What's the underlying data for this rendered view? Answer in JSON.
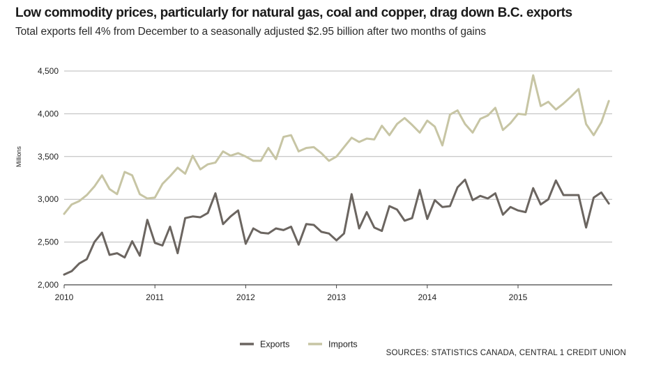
{
  "colors": {
    "exports": "#6b6560",
    "imports": "#c7c5a4",
    "grid": "#b8b8b8",
    "axis": "#444444"
  },
  "chart_data": {
    "type": "line",
    "title": "Low commodity prices, particularly for natural gas, coal and copper, drag down B.C. exports",
    "subtitle": "Total exports fell 4% from December to a seasonally adjusted $2.95 billion after two months of gains",
    "xlabel": "",
    "ylabel": "Millions",
    "ylim": [
      2000,
      4500
    ],
    "y_ticks": [
      2000,
      2500,
      3000,
      3500,
      4000,
      4500
    ],
    "y_tick_labels": [
      "2,000",
      "2,500",
      "3,000",
      "3,500",
      "4,000",
      "4,500"
    ],
    "x_ticks": [
      2010,
      2011,
      2012,
      2013,
      2014,
      2015
    ],
    "x_start": 2010,
    "points_per_year": 12,
    "grid": true,
    "legend": "bottom-center",
    "source": "SOURCES: STATISTICS CANADA, CENTRAL 1 CREDIT UNION",
    "series": [
      {
        "name": "Exports",
        "values": [
          2120,
          2160,
          2250,
          2300,
          2500,
          2610,
          2350,
          2370,
          2320,
          2510,
          2340,
          2760,
          2490,
          2460,
          2680,
          2370,
          2780,
          2800,
          2790,
          2840,
          3070,
          2710,
          2800,
          2870,
          2480,
          2660,
          2610,
          2600,
          2660,
          2640,
          2680,
          2470,
          2710,
          2700,
          2620,
          2600,
          2520,
          2600,
          3060,
          2660,
          2850,
          2670,
          2630,
          2920,
          2880,
          2750,
          2780,
          3110,
          2770,
          2990,
          2910,
          2920,
          3140,
          3230,
          2990,
          3040,
          3010,
          3070,
          2820,
          2910,
          2870,
          2850,
          3130,
          2940,
          3000,
          3220,
          3050,
          3050,
          3050,
          2670,
          3020,
          3080,
          2950
        ]
      },
      {
        "name": "Imports",
        "values": [
          2830,
          2940,
          2980,
          3050,
          3150,
          3280,
          3120,
          3060,
          3320,
          3280,
          3060,
          3010,
          3020,
          3180,
          3270,
          3370,
          3300,
          3510,
          3350,
          3410,
          3430,
          3560,
          3510,
          3540,
          3500,
          3450,
          3450,
          3600,
          3470,
          3730,
          3750,
          3560,
          3600,
          3610,
          3540,
          3450,
          3500,
          3610,
          3720,
          3670,
          3710,
          3700,
          3860,
          3750,
          3880,
          3950,
          3870,
          3780,
          3920,
          3850,
          3630,
          3990,
          4040,
          3880,
          3780,
          3940,
          3980,
          4070,
          3810,
          3890,
          4000,
          3990,
          4450,
          4090,
          4140,
          4050,
          4120,
          4200,
          4290,
          3880,
          3750,
          3900,
          4150
        ]
      }
    ]
  }
}
